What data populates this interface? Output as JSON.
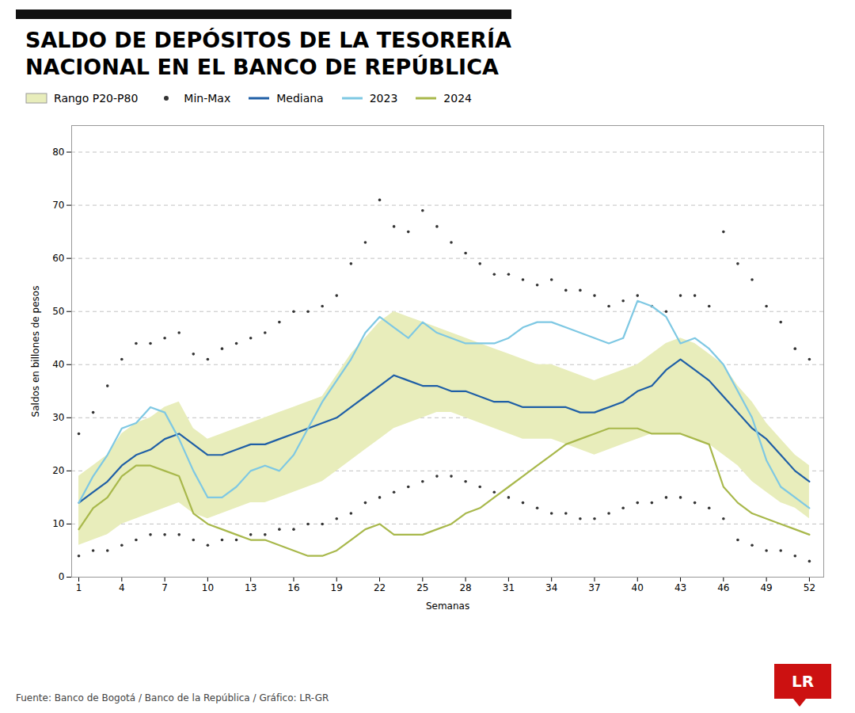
{
  "chart_data": {
    "type": "line",
    "title": "SALDO DE DEPÓSITOS DE LA TESORERÍA\nNACIONAL EN EL BANCO DE REPÚBLICA",
    "xlabel": "Semanas",
    "ylabel": "Saldos en billones de pesos",
    "annotations": [
      "Fuente: Banco de Bogotá / Banco de la República / Gráfico: LR-GR",
      "LR"
    ],
    "x": [
      1,
      2,
      3,
      4,
      5,
      6,
      7,
      8,
      9,
      10,
      11,
      12,
      13,
      14,
      15,
      16,
      17,
      18,
      19,
      20,
      21,
      22,
      23,
      24,
      25,
      26,
      27,
      28,
      29,
      30,
      31,
      32,
      33,
      34,
      35,
      36,
      37,
      38,
      39,
      40,
      41,
      42,
      43,
      44,
      45,
      46,
      47,
      48,
      49,
      50,
      51,
      52
    ],
    "xlim": [
      0.5,
      53
    ],
    "xticks": [
      1,
      4,
      7,
      10,
      13,
      16,
      19,
      22,
      25,
      28,
      31,
      34,
      37,
      40,
      43,
      46,
      49,
      52
    ],
    "ylim": [
      0,
      85
    ],
    "yticks": [
      0,
      10,
      20,
      30,
      40,
      50,
      60,
      70,
      80
    ],
    "grid": "y",
    "legend": "top",
    "series": [
      {
        "name": "Rango P20-P80",
        "type": "area",
        "color": "#e8edbb",
        "lower": [
          6,
          7,
          8,
          10,
          11,
          12,
          13,
          14,
          12,
          11,
          12,
          13,
          14,
          14,
          15,
          16,
          17,
          18,
          20,
          22,
          24,
          26,
          28,
          29,
          30,
          31,
          31,
          30,
          29,
          28,
          27,
          26,
          26,
          26,
          25,
          24,
          23,
          24,
          25,
          26,
          27,
          27,
          27,
          26,
          25,
          23,
          21,
          18,
          16,
          14,
          13,
          11
        ],
        "upper": [
          19,
          21,
          23,
          27,
          29,
          30,
          32,
          33,
          28,
          26,
          27,
          28,
          29,
          30,
          31,
          32,
          33,
          34,
          38,
          42,
          45,
          48,
          50,
          49,
          48,
          47,
          46,
          45,
          44,
          43,
          42,
          41,
          40,
          40,
          39,
          38,
          37,
          38,
          39,
          40,
          42,
          44,
          45,
          44,
          42,
          40,
          36,
          33,
          29,
          26,
          23,
          21
        ]
      },
      {
        "name": "Min-Max",
        "type": "scatter",
        "marker": "dot",
        "color": "#333333",
        "upper": [
          27,
          31,
          36,
          41,
          44,
          44,
          45,
          46,
          42,
          41,
          43,
          44,
          45,
          46,
          48,
          50,
          50,
          51,
          53,
          59,
          63,
          71,
          66,
          65,
          69,
          66,
          63,
          61,
          59,
          57,
          57,
          56,
          55,
          56,
          54,
          54,
          53,
          51,
          52,
          53,
          51,
          50,
          53,
          53,
          51,
          65,
          59,
          56,
          51,
          48,
          43,
          41
        ],
        "lower": [
          4,
          5,
          5,
          6,
          7,
          8,
          8,
          8,
          7,
          6,
          7,
          7,
          8,
          8,
          9,
          9,
          10,
          10,
          11,
          12,
          14,
          15,
          16,
          17,
          18,
          19,
          19,
          18,
          17,
          16,
          15,
          14,
          13,
          12,
          12,
          11,
          11,
          12,
          13,
          14,
          14,
          15,
          15,
          14,
          13,
          11,
          7,
          6,
          5,
          5,
          4,
          3
        ]
      },
      {
        "name": "Mediana",
        "type": "line",
        "color": "#1f5fa6",
        "values": [
          14,
          16,
          18,
          21,
          23,
          24,
          26,
          27,
          25,
          23,
          23,
          24,
          25,
          25,
          26,
          27,
          28,
          29,
          30,
          32,
          34,
          36,
          38,
          37,
          36,
          36,
          35,
          35,
          34,
          33,
          33,
          32,
          32,
          32,
          32,
          31,
          31,
          32,
          33,
          35,
          36,
          39,
          41,
          39,
          37,
          34,
          31,
          28,
          26,
          23,
          20,
          18
        ]
      },
      {
        "name": "2023",
        "type": "line",
        "color": "#7ec8e3",
        "values": [
          14,
          19,
          23,
          28,
          29,
          32,
          31,
          26,
          20,
          15,
          15,
          17,
          20,
          21,
          20,
          23,
          28,
          33,
          37,
          41,
          46,
          49,
          47,
          45,
          48,
          46,
          45,
          44,
          44,
          44,
          45,
          47,
          48,
          48,
          47,
          46,
          45,
          44,
          45,
          52,
          51,
          49,
          44,
          45,
          43,
          40,
          35,
          30,
          22,
          17,
          15,
          13
        ]
      },
      {
        "name": "2024",
        "type": "line",
        "color": "#a8b84b",
        "values": [
          9,
          13,
          15,
          19,
          21,
          21,
          20,
          19,
          12,
          10,
          9,
          8,
          7,
          7,
          6,
          5,
          4,
          4,
          5,
          7,
          9,
          10,
          8,
          8,
          8,
          9,
          10,
          12,
          13,
          15,
          17,
          19,
          21,
          23,
          25,
          26,
          27,
          28,
          28,
          28,
          27,
          27,
          27,
          26,
          25,
          17,
          14,
          12,
          11,
          10,
          9,
          8
        ]
      }
    ]
  }
}
